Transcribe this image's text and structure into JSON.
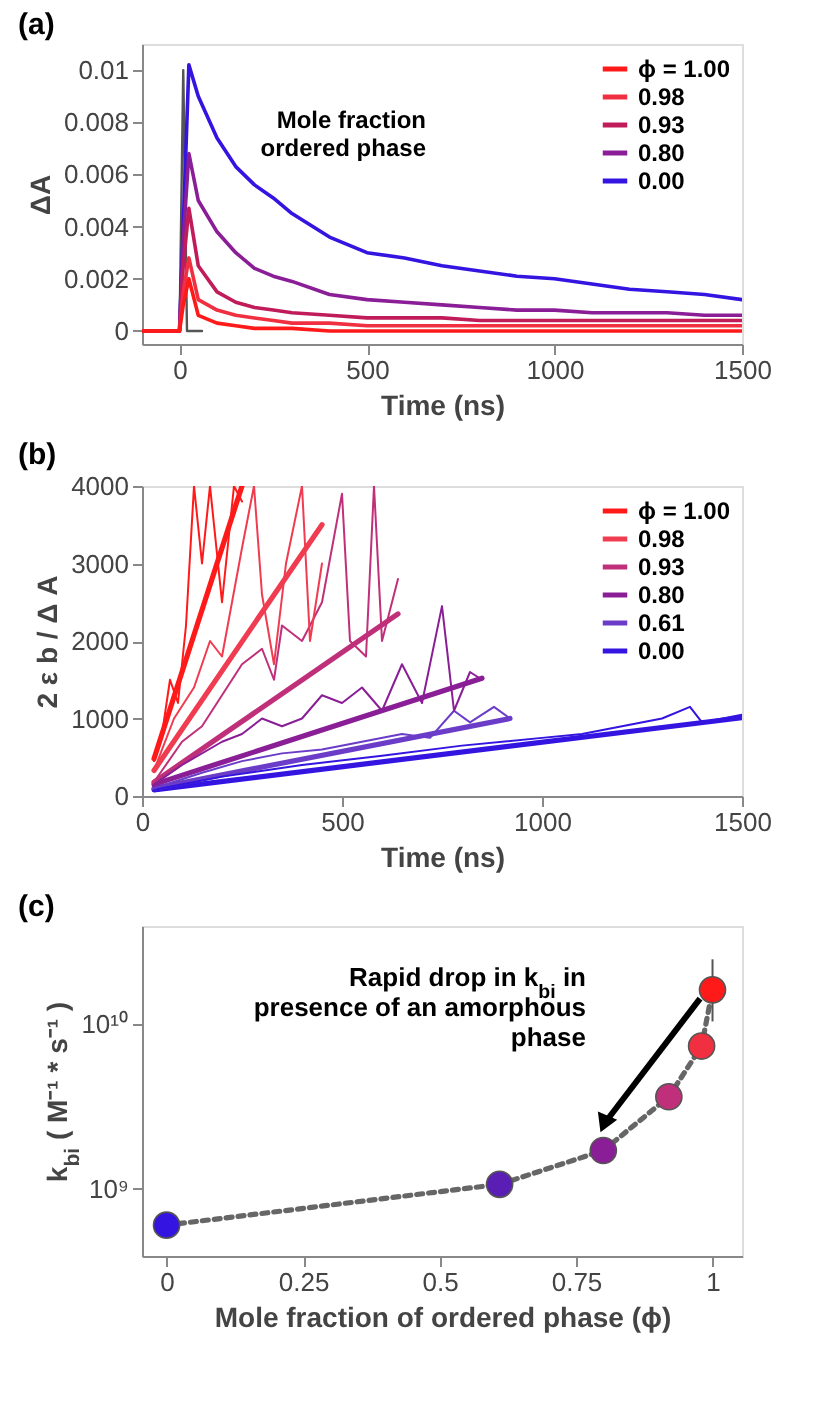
{
  "chart_data": [
    {
      "type": "line",
      "title": "(a)",
      "xlabel": "Time (ns)",
      "ylabel": "ΔA",
      "legend_title": "Mole fraction ordered phase",
      "legend": "top right",
      "grid": false,
      "xlim": [
        -100,
        1500
      ],
      "xticks": [
        0,
        500,
        1000,
        1500
      ],
      "ylim": [
        -0.0005,
        0.011
      ],
      "yticks": [
        0,
        0.002,
        0.004,
        0.006,
        0.008,
        0.01
      ],
      "x": [
        -100,
        0,
        10,
        25,
        50,
        100,
        150,
        200,
        250,
        300,
        400,
        500,
        600,
        700,
        800,
        900,
        1000,
        1100,
        1200,
        1300,
        1400,
        1500
      ],
      "series": [
        {
          "name": "ϕ = 1.00",
          "color": "#ff1a1a",
          "values": [
            0,
            0,
            0.001,
            0.002,
            0.0006,
            0.0003,
            0.0002,
            0.0001,
            0.0001,
            0.0001,
            0,
            0,
            0,
            0,
            0,
            0,
            0,
            0,
            0,
            0,
            0,
            0
          ]
        },
        {
          "name": "0.98",
          "color": "#f03040",
          "values": [
            0,
            0,
            0.0015,
            0.0028,
            0.0012,
            0.0008,
            0.0006,
            0.0005,
            0.0004,
            0.0003,
            0.0003,
            0.0002,
            0.0002,
            0.0002,
            0.0002,
            0.0002,
            0.0002,
            0.0002,
            0.0002,
            0.0002,
            0.0002,
            0.0002
          ]
        },
        {
          "name": "0.93",
          "color": "#c01c5a",
          "values": [
            0,
            0,
            0.0025,
            0.0047,
            0.0025,
            0.0015,
            0.0011,
            0.0009,
            0.0008,
            0.0007,
            0.0006,
            0.0005,
            0.0005,
            0.0005,
            0.0004,
            0.0004,
            0.0004,
            0.0004,
            0.0004,
            0.0004,
            0.0004,
            0.0004
          ]
        },
        {
          "name": "0.80",
          "color": "#8a1e96",
          "values": [
            0,
            0,
            0.0035,
            0.0068,
            0.005,
            0.0038,
            0.003,
            0.0024,
            0.0021,
            0.0019,
            0.0014,
            0.0012,
            0.0011,
            0.001,
            0.0009,
            0.0008,
            0.0008,
            0.0007,
            0.0007,
            0.0007,
            0.0006,
            0.0006
          ]
        },
        {
          "name": "0.00",
          "color": "#3314e0",
          "values": [
            0,
            0,
            0.004,
            0.0102,
            0.009,
            0.0074,
            0.0063,
            0.0056,
            0.0051,
            0.0045,
            0.0036,
            0.003,
            0.0028,
            0.0025,
            0.0023,
            0.0021,
            0.002,
            0.0018,
            0.0016,
            0.0015,
            0.0014,
            0.0012
          ]
        },
        {
          "color": "#555555",
          "x": [
            -100,
            0,
            10,
            20,
            60
          ],
          "values": [
            0,
            0,
            0.01,
            0,
            0
          ]
        }
      ]
    },
    {
      "type": "line",
      "title": "(b)",
      "xlabel": "Time (ns)",
      "ylabel": "2 ε b / Δ A",
      "legend": "top right",
      "grid": false,
      "xlim": [
        0,
        1500
      ],
      "xticks": [
        0,
        500,
        1000,
        1500
      ],
      "ylim": [
        0,
        4000
      ],
      "yticks": [
        0,
        1000,
        2000,
        3000,
        4000
      ],
      "series": [
        {
          "name": "ϕ = 1.00",
          "color": "#ff1a1a",
          "x": [
            30,
            50,
            70,
            90,
            110,
            130,
            150,
            170,
            200,
            230,
            250
          ],
          "values": [
            450,
            800,
            1500,
            1200,
            2200,
            4000,
            3000,
            4000,
            2500,
            4000,
            3800
          ]
        },
        {
          "name": "0.98",
          "color": "#f03c50",
          "x": [
            30,
            80,
            130,
            170,
            200,
            250,
            280,
            300,
            330,
            360,
            400,
            420,
            450
          ],
          "values": [
            330,
            1000,
            1400,
            2000,
            1800,
            3200,
            4000,
            2600,
            1700,
            3000,
            4000,
            2000,
            3000
          ]
        },
        {
          "name": "0.93",
          "color": "#c0307a",
          "x": [
            30,
            100,
            150,
            200,
            250,
            300,
            330,
            350,
            400,
            450,
            500,
            520,
            560,
            580,
            600,
            640
          ],
          "values": [
            180,
            700,
            900,
            1300,
            1700,
            1900,
            1500,
            2200,
            2000,
            2500,
            3900,
            2000,
            1800,
            4000,
            2000,
            2800
          ]
        },
        {
          "name": "0.80",
          "color": "#8a1e96",
          "x": [
            30,
            100,
            200,
            250,
            300,
            350,
            400,
            450,
            500,
            550,
            600,
            650,
            700,
            750,
            780,
            820,
            850
          ],
          "values": [
            150,
            400,
            700,
            800,
            1000,
            900,
            1000,
            1300,
            1200,
            1400,
            1100,
            1700,
            1200,
            2450,
            1100,
            1600,
            1500
          ]
        },
        {
          "name": "0.61",
          "color": "#6a3cc8",
          "x": [
            30,
            150,
            250,
            350,
            450,
            550,
            650,
            720,
            780,
            820,
            880,
            920
          ],
          "values": [
            100,
            300,
            450,
            550,
            600,
            700,
            800,
            750,
            1100,
            950,
            1150,
            1000
          ]
        },
        {
          "name": "0.00",
          "color": "#3314e0",
          "x": [
            30,
            200,
            400,
            600,
            800,
            1000,
            1100,
            1200,
            1300,
            1370,
            1400,
            1500
          ],
          "values": [
            80,
            250,
            400,
            520,
            650,
            750,
            800,
            900,
            1000,
            1150,
            950,
            1050
          ]
        },
        {
          "color": "#ff1a1a",
          "x": [
            30,
            250
          ],
          "values": [
            480,
            4000
          ]
        },
        {
          "color": "#f03c50",
          "x": [
            30,
            450
          ],
          "values": [
            330,
            3500
          ]
        },
        {
          "color": "#c0307a",
          "x": [
            30,
            640
          ],
          "values": [
            180,
            2350
          ]
        },
        {
          "color": "#8a1e96",
          "x": [
            30,
            850
          ],
          "values": [
            150,
            1520
          ]
        },
        {
          "color": "#6a3cc8",
          "x": [
            30,
            920
          ],
          "values": [
            100,
            1000
          ]
        },
        {
          "color": "#3314e0",
          "x": [
            30,
            1500
          ],
          "values": [
            80,
            1010
          ]
        }
      ]
    },
    {
      "type": "scatter",
      "title": "(c)",
      "xlabel": "Mole fraction of ordered phase (ϕ)",
      "ylabel": "k$_{bi}$ ( M⁻¹ * s⁻¹ )",
      "log": "y",
      "grid": false,
      "xlim": [
        -0.045,
        1.054
      ],
      "xticks": [
        0,
        0.25,
        0.5,
        0.75,
        1
      ],
      "ylim": [
        390000000,
        39000000000
      ],
      "yticks": [
        {
          "value": 1000000000,
          "label": "10⁹"
        },
        {
          "value": 10000000000,
          "label": "10¹⁰"
        }
      ],
      "x": [
        0,
        0.61,
        0.8,
        0.92,
        0.98,
        1
      ],
      "series": [
        {
          "type": "scatter",
          "marker": "circle",
          "colors": [
            "#3314e0",
            "#5a1eb4",
            "#8a1e96",
            "#c0307a",
            "#f03040",
            "#ff1a1a"
          ],
          "values": [
            600000000,
            1060000000,
            1700000000,
            3600000000,
            7300000000,
            16000000000
          ],
          "errors": [
            null,
            null,
            null,
            null,
            null,
            [
              10300000000,
              24500000000
            ]
          ]
        },
        {
          "type": "line",
          "color": "#666666",
          "line_style": "dashed",
          "values": [
            600000000,
            1060000000,
            1700000000,
            3600000000,
            7300000000,
            16000000000
          ]
        }
      ],
      "annotations": [
        "Rapid drop in k$_{bi}$ in presence of an amorphous phase"
      ]
    }
  ]
}
